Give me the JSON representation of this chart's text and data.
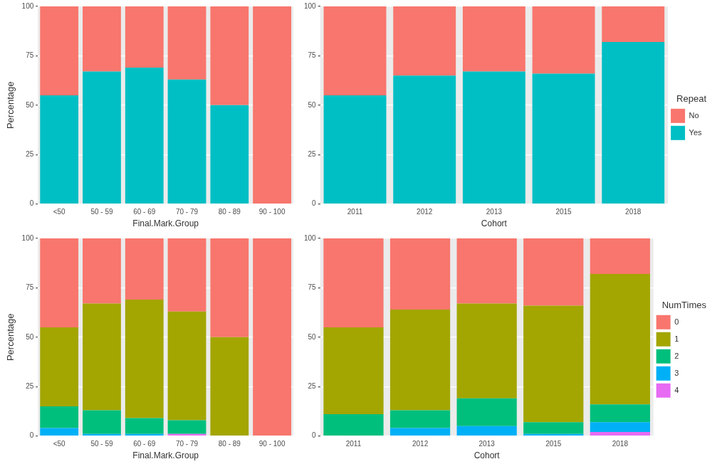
{
  "chart_data": [
    {
      "type": "bar",
      "stacked": true,
      "xlabel": "Final.Mark.Group",
      "ylabel": "Percentage",
      "categories": [
        "<50",
        "50 - 59",
        "60 - 69",
        "70 - 79",
        "80 - 89",
        "90 - 100"
      ],
      "ylim": [
        0,
        100
      ],
      "yticks": [
        0,
        25,
        50,
        75,
        100
      ],
      "grid": "y",
      "series": [
        {
          "color": "#00bfc4",
          "values": [
            55,
            67,
            69,
            63,
            50,
            0
          ]
        },
        {
          "color": "#f8766d",
          "values": [
            45,
            33,
            31,
            37,
            50,
            100
          ]
        }
      ]
    },
    {
      "type": "bar",
      "stacked": true,
      "xlabel": "Cohort",
      "categories": [
        "2011",
        "2012",
        "2013",
        "2015",
        "2018"
      ],
      "ylim": [
        0,
        100
      ],
      "yticks": [
        0,
        25,
        50,
        75,
        100
      ],
      "grid": "y",
      "legend": "right",
      "legend_title": "Repeat",
      "series": [
        {
          "name": "Yes",
          "color": "#00bfc4",
          "values": [
            55,
            65,
            67,
            66,
            82
          ]
        },
        {
          "name": "No",
          "color": "#f8766d",
          "values": [
            45,
            35,
            33,
            34,
            18
          ]
        }
      ]
    },
    {
      "type": "bar",
      "stacked": true,
      "xlabel": "Final.Mark.Group",
      "ylabel": "Percentage",
      "categories": [
        "<50",
        "50 - 59",
        "60 - 69",
        "70 - 79",
        "80 - 89",
        "90 - 100"
      ],
      "ylim": [
        0,
        100
      ],
      "yticks": [
        0,
        25,
        50,
        75,
        100
      ],
      "grid": "y",
      "series": [
        {
          "color": "#e76bf3",
          "values": [
            0,
            0,
            0,
            1,
            0,
            0
          ]
        },
        {
          "color": "#00b0f6",
          "values": [
            4,
            1,
            1,
            0,
            0,
            0
          ]
        },
        {
          "color": "#00bf7d",
          "values": [
            11,
            12,
            8,
            7,
            0,
            0
          ]
        },
        {
          "color": "#a3a500",
          "values": [
            40,
            54,
            60,
            55,
            50,
            0
          ]
        },
        {
          "color": "#f8766d",
          "values": [
            45,
            33,
            31,
            37,
            50,
            100
          ]
        }
      ]
    },
    {
      "type": "bar",
      "stacked": true,
      "xlabel": "Cohort",
      "categories": [
        "2011",
        "2012",
        "2013",
        "2015",
        "2018"
      ],
      "ylim": [
        0,
        100
      ],
      "yticks": [
        0,
        25,
        50,
        75,
        100
      ],
      "grid": "y",
      "legend": "right",
      "legend_title": "NumTimes",
      "series": [
        {
          "name": "4",
          "color": "#e76bf3",
          "values": [
            0,
            0,
            0,
            0,
            2
          ]
        },
        {
          "name": "3",
          "color": "#00b0f6",
          "values": [
            0,
            4,
            5,
            1,
            5
          ]
        },
        {
          "name": "2",
          "color": "#00bf7d",
          "values": [
            11,
            9,
            14,
            6,
            9
          ]
        },
        {
          "name": "1",
          "color": "#a3a500",
          "values": [
            44,
            51,
            48,
            59,
            66
          ]
        },
        {
          "name": "0",
          "color": "#f8766d",
          "values": [
            45,
            36,
            33,
            34,
            18
          ]
        }
      ]
    }
  ]
}
